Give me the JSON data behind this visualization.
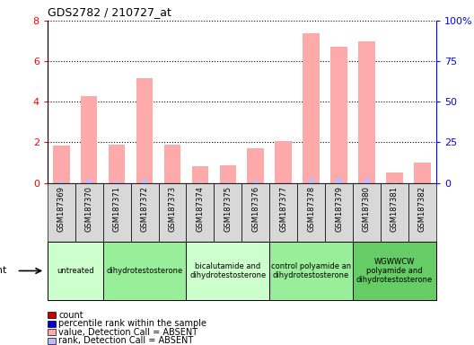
{
  "title": "GDS2782 / 210727_at",
  "samples": [
    "GSM187369",
    "GSM187370",
    "GSM187371",
    "GSM187372",
    "GSM187373",
    "GSM187374",
    "GSM187375",
    "GSM187376",
    "GSM187377",
    "GSM187378",
    "GSM187379",
    "GSM187380",
    "GSM187381",
    "GSM187382"
  ],
  "agents": [
    {
      "label": "untreated",
      "indices": [
        0,
        1
      ],
      "color": "#ccffcc"
    },
    {
      "label": "dihydrotestosterone",
      "indices": [
        2,
        3,
        4
      ],
      "color": "#99ee99"
    },
    {
      "label": "bicalutamide and\ndihydrotestosterone",
      "indices": [
        5,
        6,
        7
      ],
      "color": "#ccffcc"
    },
    {
      "label": "control polyamide an\ndihydrotestosterone",
      "indices": [
        8,
        9,
        10
      ],
      "color": "#99ee99"
    },
    {
      "label": "WGWWCW\npolyamide and\ndihydrotestosterone",
      "indices": [
        11,
        12,
        13
      ],
      "color": "#66cc66"
    }
  ],
  "absent_value_bars": [
    1.85,
    4.3,
    1.9,
    5.15,
    1.9,
    0.8,
    0.87,
    1.7,
    2.07,
    7.4,
    6.7,
    7.0,
    0.5,
    1.0
  ],
  "absent_rank_bars": [
    1.0,
    2.0,
    1.1,
    2.05,
    0.0,
    0.35,
    0.55,
    1.6,
    0.0,
    2.45,
    3.25,
    2.4,
    0.4,
    0.0
  ],
  "ylim_left": [
    0,
    8
  ],
  "ylim_right": [
    0,
    100
  ],
  "yticks_left": [
    0,
    2,
    4,
    6,
    8
  ],
  "ytick_labels_left": [
    "0",
    "2",
    "4",
    "6",
    "8"
  ],
  "yticks_right": [
    0,
    25,
    50,
    75,
    100
  ],
  "ytick_labels_right": [
    "0",
    "25",
    "50",
    "75",
    "100%"
  ],
  "color_absent_value": "#ffaaaa",
  "color_absent_rank": "#bbbbff",
  "color_count": "#cc0000",
  "color_percentile": "#0000cc",
  "bg_color": "#d8d8d8",
  "chart_bg": "#ffffff",
  "legend_items": [
    {
      "color": "#cc0000",
      "label": "count"
    },
    {
      "color": "#0000cc",
      "label": "percentile rank within the sample"
    },
    {
      "color": "#ffaaaa",
      "label": "value, Detection Call = ABSENT"
    },
    {
      "color": "#bbbbff",
      "label": "rank, Detection Call = ABSENT"
    }
  ]
}
